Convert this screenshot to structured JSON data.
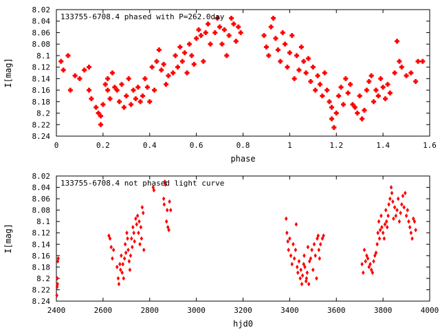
{
  "chart_data": [
    {
      "type": "scatter",
      "title": "133755-6708.4 phased with P=262.0day",
      "xlabel": "phase",
      "ylabel": "I[mag]",
      "xlim": [
        0,
        1.6
      ],
      "ylim": [
        8.24,
        8.02
      ],
      "y_inverted": true,
      "grid": false,
      "marker": "plus-bold",
      "color": "#ff0000",
      "x_ticks": [
        "0",
        "0.2",
        "0.4",
        "0.6",
        "0.8",
        "1",
        "1.2",
        "1.4",
        "1.6"
      ],
      "y_ticks": [
        "8.02",
        "8.04",
        "8.06",
        "8.08",
        "8.1",
        "8.12",
        "8.14",
        "8.16",
        "8.18",
        "8.2",
        "8.22",
        "8.24"
      ],
      "x_tick_values": [
        0,
        0.2,
        0.4,
        0.6,
        0.8,
        1.0,
        1.2,
        1.4,
        1.6
      ],
      "y_tick_values": [
        8.02,
        8.04,
        8.06,
        8.08,
        8.1,
        8.12,
        8.14,
        8.16,
        8.18,
        8.2,
        8.22,
        8.24
      ],
      "points": [
        [
          0.02,
          8.11
        ],
        [
          0.03,
          8.125
        ],
        [
          0.05,
          8.1
        ],
        [
          0.06,
          8.16
        ],
        [
          0.08,
          8.135
        ],
        [
          0.1,
          8.14
        ],
        [
          0.12,
          8.125
        ],
        [
          0.14,
          8.12
        ],
        [
          0.14,
          8.16
        ],
        [
          0.15,
          8.175
        ],
        [
          0.17,
          8.19
        ],
        [
          0.18,
          8.2
        ],
        [
          0.19,
          8.205
        ],
        [
          0.19,
          8.22
        ],
        [
          0.2,
          8.185
        ],
        [
          0.21,
          8.15
        ],
        [
          0.22,
          8.14
        ],
        [
          0.22,
          8.16
        ],
        [
          0.23,
          8.175
        ],
        [
          0.24,
          8.13
        ],
        [
          0.25,
          8.155
        ],
        [
          0.26,
          8.16
        ],
        [
          0.27,
          8.18
        ],
        [
          0.28,
          8.15
        ],
        [
          0.29,
          8.19
        ],
        [
          0.3,
          8.17
        ],
        [
          0.31,
          8.14
        ],
        [
          0.32,
          8.185
        ],
        [
          0.33,
          8.16
        ],
        [
          0.34,
          8.175
        ],
        [
          0.35,
          8.155
        ],
        [
          0.36,
          8.18
        ],
        [
          0.37,
          8.17
        ],
        [
          0.38,
          8.14
        ],
        [
          0.39,
          8.155
        ],
        [
          0.4,
          8.18
        ],
        [
          0.41,
          8.12
        ],
        [
          0.42,
          8.16
        ],
        [
          0.43,
          8.11
        ],
        [
          0.44,
          8.09
        ],
        [
          0.45,
          8.125
        ],
        [
          0.46,
          8.115
        ],
        [
          0.47,
          8.15
        ],
        [
          0.48,
          8.135
        ],
        [
          0.5,
          8.13
        ],
        [
          0.51,
          8.1
        ],
        [
          0.52,
          8.12
        ],
        [
          0.53,
          8.085
        ],
        [
          0.54,
          8.11
        ],
        [
          0.55,
          8.095
        ],
        [
          0.56,
          8.13
        ],
        [
          0.57,
          8.08
        ],
        [
          0.58,
          8.1
        ],
        [
          0.59,
          8.115
        ],
        [
          0.6,
          8.07
        ],
        [
          0.61,
          8.055
        ],
        [
          0.62,
          8.065
        ],
        [
          0.63,
          8.11
        ],
        [
          0.64,
          8.06
        ],
        [
          0.65,
          8.045
        ],
        [
          0.66,
          8.08
        ],
        [
          0.68,
          8.06
        ],
        [
          0.69,
          8.035
        ],
        [
          0.7,
          8.05
        ],
        [
          0.71,
          8.08
        ],
        [
          0.72,
          8.055
        ],
        [
          0.73,
          8.1
        ],
        [
          0.74,
          8.065
        ],
        [
          0.75,
          8.035
        ],
        [
          0.76,
          8.045
        ],
        [
          0.77,
          8.075
        ],
        [
          0.78,
          8.05
        ],
        [
          0.79,
          8.06
        ],
        [
          0.89,
          8.065
        ],
        [
          0.9,
          8.085
        ],
        [
          0.91,
          8.1
        ],
        [
          0.92,
          8.05
        ],
        [
          0.93,
          8.035
        ],
        [
          0.94,
          8.07
        ],
        [
          0.95,
          8.09
        ],
        [
          0.96,
          8.11
        ],
        [
          0.97,
          8.06
        ],
        [
          0.98,
          8.08
        ],
        [
          0.99,
          8.12
        ],
        [
          1.0,
          8.095
        ],
        [
          1.01,
          8.065
        ],
        [
          1.02,
          8.14
        ],
        [
          1.03,
          8.1
        ],
        [
          1.04,
          8.125
        ],
        [
          1.05,
          8.085
        ],
        [
          1.06,
          8.11
        ],
        [
          1.07,
          8.13
        ],
        [
          1.08,
          8.105
        ],
        [
          1.09,
          8.145
        ],
        [
          1.1,
          8.12
        ],
        [
          1.11,
          8.16
        ],
        [
          1.12,
          8.135
        ],
        [
          1.13,
          8.15
        ],
        [
          1.14,
          8.17
        ],
        [
          1.15,
          8.13
        ],
        [
          1.16,
          8.16
        ],
        [
          1.17,
          8.18
        ],
        [
          1.18,
          8.19
        ],
        [
          1.18,
          8.21
        ],
        [
          1.19,
          8.225
        ],
        [
          1.2,
          8.2
        ],
        [
          1.21,
          8.17
        ],
        [
          1.22,
          8.155
        ],
        [
          1.23,
          8.185
        ],
        [
          1.24,
          8.14
        ],
        [
          1.25,
          8.165
        ],
        [
          1.26,
          8.15
        ],
        [
          1.27,
          8.185
        ],
        [
          1.28,
          8.19
        ],
        [
          1.29,
          8.2
        ],
        [
          1.3,
          8.17
        ],
        [
          1.31,
          8.21
        ],
        [
          1.32,
          8.195
        ],
        [
          1.33,
          8.16
        ],
        [
          1.34,
          8.145
        ],
        [
          1.35,
          8.135
        ],
        [
          1.36,
          8.18
        ],
        [
          1.37,
          8.16
        ],
        [
          1.38,
          8.17
        ],
        [
          1.39,
          8.14
        ],
        [
          1.4,
          8.155
        ],
        [
          1.41,
          8.175
        ],
        [
          1.42,
          8.15
        ],
        [
          1.43,
          8.165
        ],
        [
          1.45,
          8.13
        ],
        [
          1.46,
          8.075
        ],
        [
          1.47,
          8.11
        ],
        [
          1.48,
          8.12
        ],
        [
          1.5,
          8.135
        ],
        [
          1.52,
          8.13
        ],
        [
          1.54,
          8.145
        ],
        [
          1.55,
          8.11
        ],
        [
          1.57,
          8.11
        ]
      ]
    },
    {
      "type": "scatter",
      "title": "133755-6708.4 not phased light curve",
      "xlabel": "hjd0",
      "ylabel": "I[mag]",
      "xlim": [
        2400,
        4000
      ],
      "ylim": [
        8.24,
        8.02
      ],
      "y_inverted": true,
      "grid": false,
      "marker": "diamond",
      "color": "#ff0000",
      "x_ticks": [
        "2400",
        "2600",
        "2800",
        "3000",
        "3200",
        "3400",
        "3600",
        "3800",
        "4000"
      ],
      "y_ticks": [
        "8.02",
        "8.04",
        "8.06",
        "8.08",
        "8.1",
        "8.12",
        "8.14",
        "8.16",
        "8.18",
        "8.2",
        "8.22",
        "8.24"
      ],
      "x_tick_values": [
        2400,
        2600,
        2800,
        3000,
        3200,
        3400,
        3600,
        3800,
        4000
      ],
      "y_tick_values": [
        8.02,
        8.04,
        8.06,
        8.08,
        8.1,
        8.12,
        8.14,
        8.16,
        8.18,
        8.2,
        8.22,
        8.24
      ],
      "points": [
        [
          2402,
          8.23
        ],
        [
          2403,
          8.215
        ],
        [
          2404,
          8.2
        ],
        [
          2405,
          8.21
        ],
        [
          2406,
          8.17
        ],
        [
          2408,
          8.165
        ],
        [
          2625,
          8.125
        ],
        [
          2630,
          8.13
        ],
        [
          2635,
          8.145
        ],
        [
          2640,
          8.165
        ],
        [
          2645,
          8.15
        ],
        [
          2660,
          8.18
        ],
        [
          2665,
          8.2
        ],
        [
          2668,
          8.21
        ],
        [
          2672,
          8.175
        ],
        [
          2675,
          8.185
        ],
        [
          2678,
          8.16
        ],
        [
          2682,
          8.19
        ],
        [
          2685,
          8.175
        ],
        [
          2688,
          8.2
        ],
        [
          2692,
          8.165
        ],
        [
          2695,
          8.14
        ],
        [
          2698,
          8.155
        ],
        [
          2702,
          8.12
        ],
        [
          2705,
          8.13
        ],
        [
          2708,
          8.15
        ],
        [
          2712,
          8.17
        ],
        [
          2715,
          8.185
        ],
        [
          2718,
          8.16
        ],
        [
          2722,
          8.13
        ],
        [
          2725,
          8.145
        ],
        [
          2728,
          8.11
        ],
        [
          2732,
          8.12
        ],
        [
          2735,
          8.135
        ],
        [
          2740,
          8.095
        ],
        [
          2744,
          8.105
        ],
        [
          2748,
          8.09
        ],
        [
          2752,
          8.12
        ],
        [
          2755,
          8.1
        ],
        [
          2758,
          8.14
        ],
        [
          2762,
          8.11
        ],
        [
          2765,
          8.13
        ],
        [
          2768,
          8.075
        ],
        [
          2772,
          8.085
        ],
        [
          2775,
          8.15
        ],
        [
          2815,
          8.04
        ],
        [
          2818,
          8.045
        ],
        [
          2860,
          8.06
        ],
        [
          2862,
          8.07
        ],
        [
          2865,
          8.03
        ],
        [
          2868,
          8.035
        ],
        [
          2872,
          8.1
        ],
        [
          2875,
          8.08
        ],
        [
          2878,
          8.11
        ],
        [
          2882,
          8.115
        ],
        [
          2885,
          8.065
        ],
        [
          2890,
          8.08
        ],
        [
          3385,
          8.095
        ],
        [
          3388,
          8.12
        ],
        [
          3392,
          8.135
        ],
        [
          3395,
          8.15
        ],
        [
          3400,
          8.13
        ],
        [
          3405,
          8.16
        ],
        [
          3410,
          8.175
        ],
        [
          3415,
          8.14
        ],
        [
          3420,
          8.165
        ],
        [
          3425,
          8.15
        ],
        [
          3428,
          8.105
        ],
        [
          3432,
          8.18
        ],
        [
          3435,
          8.19
        ],
        [
          3440,
          8.17
        ],
        [
          3445,
          8.2
        ],
        [
          3448,
          8.185
        ],
        [
          3452,
          8.21
        ],
        [
          3455,
          8.195
        ],
        [
          3460,
          8.175
        ],
        [
          3462,
          8.16
        ],
        [
          3465,
          8.18
        ],
        [
          3470,
          8.205
        ],
        [
          3472,
          8.2
        ],
        [
          3475,
          8.19
        ],
        [
          3478,
          8.145
        ],
        [
          3482,
          8.21
        ],
        [
          3485,
          8.17
        ],
        [
          3490,
          8.165
        ],
        [
          3495,
          8.15
        ],
        [
          3500,
          8.185
        ],
        [
          3505,
          8.14
        ],
        [
          3510,
          8.16
        ],
        [
          3515,
          8.2
        ],
        [
          3518,
          8.13
        ],
        [
          3522,
          8.125
        ],
        [
          3525,
          8.15
        ],
        [
          3528,
          8.165
        ],
        [
          3532,
          8.14
        ],
        [
          3540,
          8.13
        ],
        [
          3545,
          8.125
        ],
        [
          3710,
          8.175
        ],
        [
          3715,
          8.19
        ],
        [
          3720,
          8.15
        ],
        [
          3725,
          8.17
        ],
        [
          3730,
          8.16
        ],
        [
          3735,
          8.165
        ],
        [
          3740,
          8.18
        ],
        [
          3745,
          8.175
        ],
        [
          3750,
          8.185
        ],
        [
          3755,
          8.19
        ],
        [
          3760,
          8.17
        ],
        [
          3765,
          8.16
        ],
        [
          3770,
          8.155
        ],
        [
          3775,
          8.14
        ],
        [
          3778,
          8.12
        ],
        [
          3782,
          8.1
        ],
        [
          3785,
          8.13
        ],
        [
          3788,
          8.115
        ],
        [
          3792,
          8.09
        ],
        [
          3795,
          8.11
        ],
        [
          3800,
          8.12
        ],
        [
          3805,
          8.13
        ],
        [
          3808,
          8.105
        ],
        [
          3812,
          8.08
        ],
        [
          3815,
          8.1
        ],
        [
          3818,
          8.11
        ],
        [
          3822,
          8.09
        ],
        [
          3825,
          8.07
        ],
        [
          3830,
          8.06
        ],
        [
          3835,
          8.04
        ],
        [
          3838,
          8.05
        ],
        [
          3842,
          8.065
        ],
        [
          3845,
          8.095
        ],
        [
          3850,
          8.075
        ],
        [
          3855,
          8.09
        ],
        [
          3860,
          8.08
        ],
        [
          3865,
          8.06
        ],
        [
          3870,
          8.1
        ],
        [
          3875,
          8.085
        ],
        [
          3880,
          8.07
        ],
        [
          3885,
          8.055
        ],
        [
          3890,
          8.075
        ],
        [
          3895,
          8.05
        ],
        [
          3900,
          8.09
        ],
        [
          3905,
          8.08
        ],
        [
          3910,
          8.1
        ],
        [
          3915,
          8.11
        ],
        [
          3920,
          8.12
        ],
        [
          3925,
          8.13
        ],
        [
          3930,
          8.095
        ],
        [
          3935,
          8.1
        ],
        [
          3940,
          8.115
        ]
      ]
    }
  ]
}
